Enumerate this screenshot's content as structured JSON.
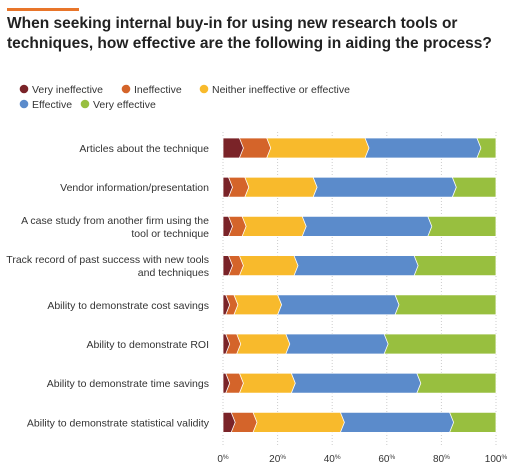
{
  "title": "When seeking internal buy-in for using new research tools or techniques, how effective are the following in aiding the process?",
  "colors": {
    "accent": "#E8752A",
    "Very ineffective": "#7A2328",
    "Ineffective": "#D4642A",
    "Neither ineffective or effective": "#F8BA2C",
    "Effective": "#5B8BCB",
    "Very effective": "#98BF3F",
    "grid": "#CCCCCC"
  },
  "chart_data": {
    "type": "bar",
    "orientation": "horizontal",
    "stacked": true,
    "title": "When seeking internal buy-in for using new research tools or techniques, how effective are the following in aiding the process?",
    "xlabel": "",
    "ylabel": "",
    "xlim": [
      0,
      100
    ],
    "x_ticks": [
      {
        "value": 0,
        "num": "0",
        "unit": "%"
      },
      {
        "value": 20,
        "num": "20",
        "unit": "%"
      },
      {
        "value": 40,
        "num": "40",
        "unit": "%"
      },
      {
        "value": 60,
        "num": "60",
        "unit": "%"
      },
      {
        "value": 80,
        "num": "80",
        "unit": "%"
      },
      {
        "value": 100,
        "num": "100",
        "unit": "%"
      }
    ],
    "grid": true,
    "legend_position": "top-left",
    "categories": [
      [
        "Articles about the technique"
      ],
      [
        "Vendor information/presentation"
      ],
      [
        "A case study from another firm using the",
        "tool or technique"
      ],
      [
        "Track record of past success with new tools",
        "and techniques"
      ],
      [
        "Ability to demonstrate cost savings"
      ],
      [
        "Ability to demonstrate ROI"
      ],
      [
        "Ability to demonstrate time savings"
      ],
      [
        "Ability to demonstrate statistical validity"
      ]
    ],
    "series": [
      {
        "name": "Very ineffective",
        "values": [
          6,
          2,
          2,
          2,
          1,
          1,
          1,
          3
        ]
      },
      {
        "name": "Ineffective",
        "values": [
          10,
          6,
          5,
          4,
          3,
          4,
          5,
          8
        ]
      },
      {
        "name": "Neither ineffective or effective",
        "values": [
          36,
          25,
          22,
          20,
          16,
          18,
          19,
          32
        ]
      },
      {
        "name": "Effective",
        "values": [
          41,
          51,
          46,
          44,
          43,
          36,
          46,
          40
        ]
      },
      {
        "name": "Very effective",
        "values": [
          7,
          16,
          25,
          30,
          37,
          41,
          29,
          17
        ]
      }
    ]
  }
}
